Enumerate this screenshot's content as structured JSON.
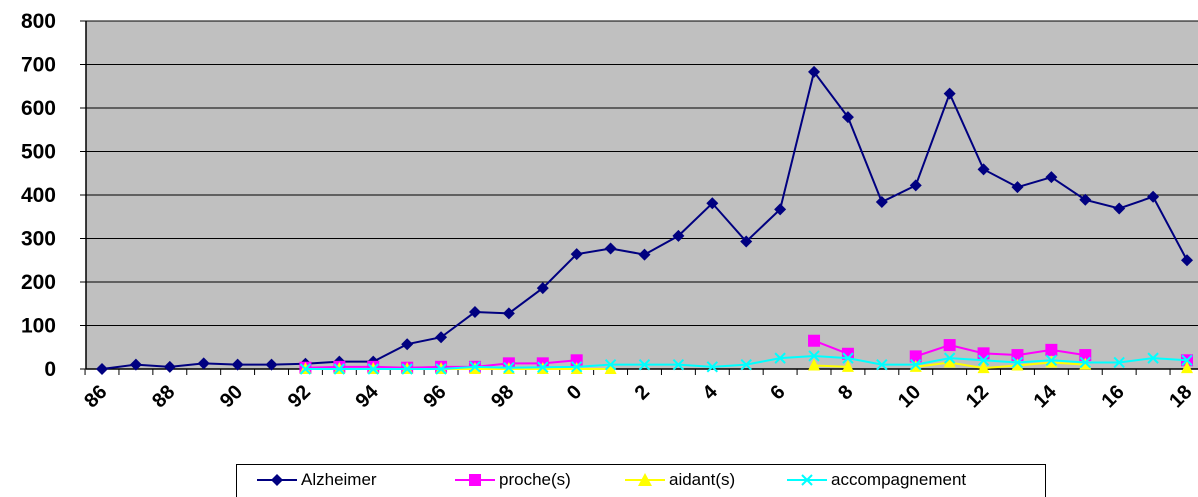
{
  "chart_data": {
    "type": "line",
    "title": "",
    "xlabel": "",
    "ylabel": "",
    "ylim": [
      0,
      800
    ],
    "yticks": [
      "0",
      "100",
      "200",
      "300",
      "400",
      "500",
      "600",
      "700",
      "800"
    ],
    "x": [
      "86",
      "87",
      "88",
      "89",
      "90",
      "91",
      "92",
      "93",
      "94",
      "95",
      "96",
      "97",
      "98",
      "99",
      "0",
      "1",
      "2",
      "3",
      "4",
      "5",
      "6",
      "7",
      "8",
      "9",
      "10",
      "11",
      "12",
      "13",
      "14",
      "15",
      "16",
      "17",
      "18"
    ],
    "xtick_labels": [
      "86",
      "88",
      "90",
      "92",
      "94",
      "96",
      "98",
      "0",
      "2",
      "4",
      "6",
      "8",
      "10",
      "12",
      "14",
      "16",
      "18"
    ],
    "grid": "horizontal",
    "background": "#c0c0c0",
    "legend_position": "bottom",
    "series": [
      {
        "name": "Alzheimer",
        "color": "#000080",
        "marker": "diamond",
        "values": [
          0,
          10,
          5,
          13,
          10,
          10,
          12,
          17,
          17,
          57,
          73,
          131,
          128,
          186,
          264,
          277,
          263,
          306,
          381,
          293,
          367,
          683,
          579,
          384,
          422,
          633,
          459,
          418,
          441,
          389,
          369,
          396,
          250
        ]
      },
      {
        "name": "proche(s)",
        "color": "#ff00ff",
        "marker": "square",
        "values": [
          null,
          null,
          null,
          null,
          null,
          null,
          3,
          5,
          5,
          3,
          5,
          5,
          13,
          13,
          20,
          null,
          null,
          null,
          null,
          null,
          null,
          65,
          35,
          null,
          29,
          55,
          36,
          32,
          44,
          32,
          null,
          null,
          20
        ]
      },
      {
        "name": "aidant(s)",
        "color": "#ffff00",
        "marker": "triangle",
        "values": [
          null,
          null,
          null,
          null,
          null,
          null,
          0,
          0,
          0,
          0,
          0,
          0,
          0,
          0,
          0,
          0,
          null,
          null,
          null,
          null,
          null,
          8,
          5,
          null,
          5,
          15,
          2,
          8,
          15,
          10,
          null,
          null,
          2
        ]
      },
      {
        "name": "accompagnement",
        "color": "#00ffff",
        "marker": "x",
        "values": [
          null,
          null,
          null,
          null,
          null,
          null,
          0,
          0,
          0,
          0,
          0,
          5,
          3,
          4,
          5,
          10,
          10,
          10,
          5,
          10,
          25,
          30,
          25,
          10,
          10,
          25,
          20,
          15,
          20,
          15,
          15,
          25,
          20
        ]
      }
    ]
  }
}
